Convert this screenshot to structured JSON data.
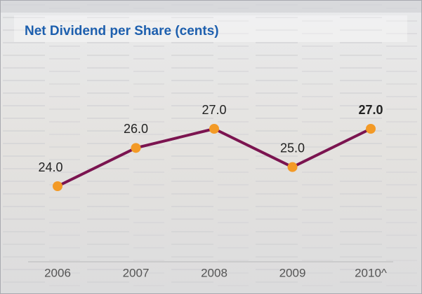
{
  "chart_data": {
    "type": "line",
    "title": "Net Dividend per Share (cents)",
    "categories": [
      "2006",
      "2007",
      "2008",
      "2009",
      "2010^"
    ],
    "values": [
      24,
      26,
      27,
      25,
      27
    ],
    "value_labels": [
      "24.0",
      "26.0",
      "27.0",
      "25.0",
      "27.0"
    ],
    "color": "#7b1450",
    "marker_color": "#f39a26"
  }
}
